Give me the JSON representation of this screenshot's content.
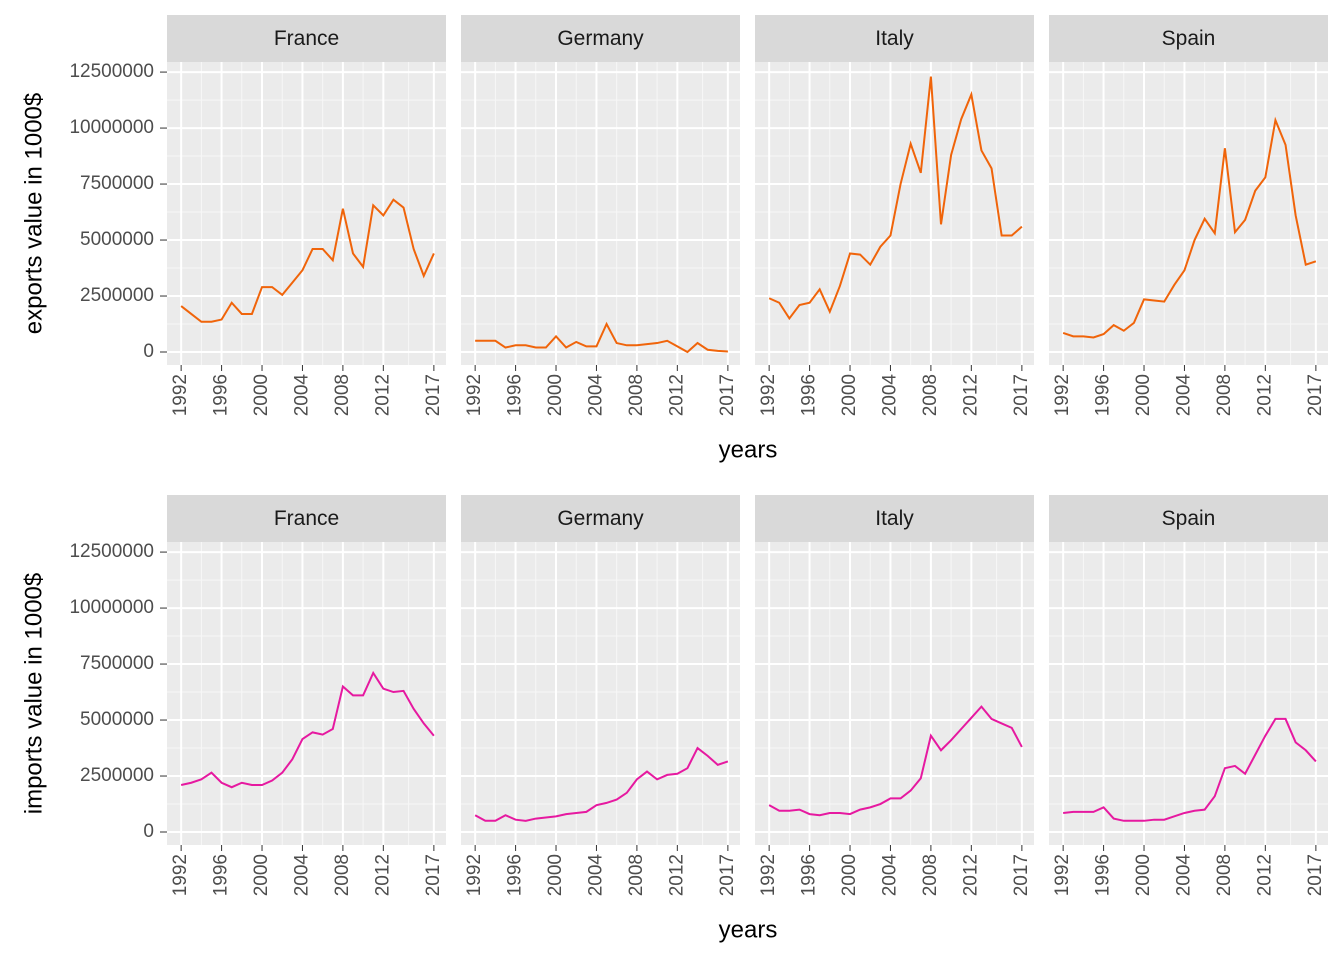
{
  "chart_data": [
    {
      "type": "line",
      "ylabel": "exports value in 1000$",
      "xlabel": "years",
      "color": "#f0640a",
      "x": [
        1992,
        1993,
        1994,
        1995,
        1996,
        1997,
        1998,
        1999,
        2000,
        2001,
        2002,
        2003,
        2004,
        2005,
        2006,
        2007,
        2008,
        2009,
        2010,
        2011,
        2012,
        2013,
        2014,
        2015,
        2016,
        2017
      ],
      "xlim": [
        1990.6,
        2018.2
      ],
      "xticks": [
        1992,
        1996,
        2000,
        2004,
        2008,
        2012,
        2017
      ],
      "ylim": [
        -580000,
        12950000
      ],
      "yticks": [
        0,
        2500000,
        5000000,
        7500000,
        10000000,
        12500000
      ],
      "grid": true,
      "series": [
        {
          "name": "France",
          "values": [
            2050000,
            1700000,
            1350000,
            1350000,
            1450000,
            2200000,
            1700000,
            1700000,
            2900000,
            2900000,
            2550000,
            3100000,
            3650000,
            4600000,
            4600000,
            4100000,
            6400000,
            4400000,
            3800000,
            6550000,
            6100000,
            6800000,
            6450000,
            4600000,
            3400000,
            4400000
          ]
        },
        {
          "name": "Germany",
          "values": [
            500000,
            500000,
            500000,
            200000,
            300000,
            300000,
            200000,
            200000,
            700000,
            200000,
            450000,
            250000,
            250000,
            1250000,
            400000,
            300000,
            300000,
            350000,
            400000,
            500000,
            250000,
            0,
            400000,
            100000,
            50000,
            20000
          ]
        },
        {
          "name": "Italy",
          "values": [
            2400000,
            2200000,
            1500000,
            2100000,
            2200000,
            2800000,
            1800000,
            2950000,
            4400000,
            4350000,
            3900000,
            4700000,
            5200000,
            7500000,
            9300000,
            8000000,
            12300000,
            5700000,
            8800000,
            10400000,
            11500000,
            9000000,
            8200000,
            5200000,
            5200000,
            5600000
          ]
        },
        {
          "name": "Spain",
          "values": [
            850000,
            700000,
            700000,
            650000,
            800000,
            1200000,
            950000,
            1300000,
            2350000,
            2300000,
            2250000,
            3000000,
            3650000,
            5000000,
            5950000,
            5300000,
            9100000,
            5350000,
            5900000,
            7200000,
            7800000,
            10350000,
            9250000,
            6100000,
            3900000,
            4050000
          ]
        }
      ]
    },
    {
      "type": "line",
      "ylabel": "imports value in 1000$",
      "xlabel": "years",
      "color": "#e619a0",
      "x": [
        1992,
        1993,
        1994,
        1995,
        1996,
        1997,
        1998,
        1999,
        2000,
        2001,
        2002,
        2003,
        2004,
        2005,
        2006,
        2007,
        2008,
        2009,
        2010,
        2011,
        2012,
        2013,
        2014,
        2015,
        2016,
        2017
      ],
      "xlim": [
        1990.6,
        2018.2
      ],
      "xticks": [
        1992,
        1996,
        2000,
        2004,
        2008,
        2012,
        2017
      ],
      "ylim": [
        -580000,
        12950000
      ],
      "yticks": [
        0,
        2500000,
        5000000,
        7500000,
        10000000,
        12500000
      ],
      "grid": true,
      "series": [
        {
          "name": "France",
          "values": [
            2100000,
            2200000,
            2350000,
            2650000,
            2200000,
            2000000,
            2200000,
            2100000,
            2100000,
            2300000,
            2650000,
            3250000,
            4150000,
            4450000,
            4350000,
            4600000,
            6500000,
            6100000,
            6100000,
            7100000,
            6400000,
            6250000,
            6300000,
            5500000,
            4850000,
            4300000
          ]
        },
        {
          "name": "Germany",
          "values": [
            750000,
            500000,
            500000,
            750000,
            550000,
            500000,
            600000,
            650000,
            700000,
            800000,
            850000,
            900000,
            1200000,
            1300000,
            1450000,
            1750000,
            2350000,
            2700000,
            2350000,
            2550000,
            2600000,
            2850000,
            3750000,
            3400000,
            3000000,
            3150000
          ]
        },
        {
          "name": "Italy",
          "values": [
            1200000,
            950000,
            950000,
            1000000,
            800000,
            750000,
            850000,
            850000,
            800000,
            1000000,
            1100000,
            1250000,
            1500000,
            1500000,
            1850000,
            2400000,
            4300000,
            3650000,
            4100000,
            4600000,
            5100000,
            5600000,
            5050000,
            4850000,
            4650000,
            3800000
          ]
        },
        {
          "name": "Spain",
          "values": [
            850000,
            900000,
            900000,
            900000,
            1100000,
            600000,
            500000,
            500000,
            500000,
            550000,
            550000,
            700000,
            850000,
            950000,
            1000000,
            1600000,
            2850000,
            2950000,
            2600000,
            3450000,
            4300000,
            5050000,
            5050000,
            4000000,
            3650000,
            3150000
          ]
        }
      ]
    }
  ]
}
